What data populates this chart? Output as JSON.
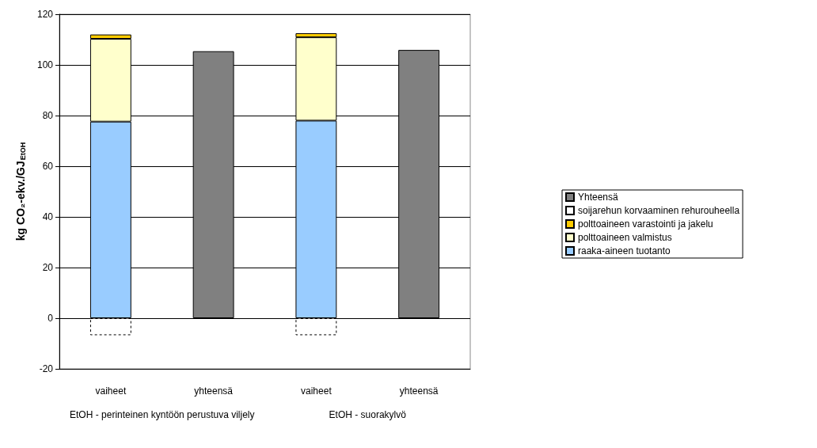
{
  "chart_data": {
    "type": "bar",
    "stacked": true,
    "ylabel": "kg CO₂-ekv./GJ$_{EtOH}$",
    "categories": [
      "vaiheet",
      "yhteensä",
      "vaiheet",
      "yhteensä"
    ],
    "annotations": [
      "EtOH - perinteinen kyntöön perustuva viljely",
      "EtOH - suorakylvö"
    ],
    "series": [
      {
        "name": "raaka-aineen tuotanto",
        "color": "#99ccff",
        "values": [
          77.6,
          null,
          78.0,
          null
        ]
      },
      {
        "name": "polttoaineen valmistus",
        "color": "#ffffcc",
        "values": [
          32.7,
          null,
          32.9,
          null
        ]
      },
      {
        "name": "polttoaineen varastointi ja jakelu",
        "color": "#ffcc00",
        "values": [
          1.7,
          null,
          1.6,
          null
        ]
      },
      {
        "name": "soijarehun korvaaminen rehurouheella",
        "color": "#ffffff",
        "line_style": "dashed",
        "values": [
          -6.7,
          null,
          -6.7,
          null
        ]
      },
      {
        "name": "Yhteensä",
        "color": "#808080",
        "values": [
          null,
          105.4,
          null,
          105.9
        ]
      }
    ],
    "ylim": [
      -20,
      120
    ],
    "yticks": [
      -20,
      0,
      20,
      40,
      60,
      80,
      100,
      120
    ],
    "grid": "y",
    "legend": "right"
  }
}
